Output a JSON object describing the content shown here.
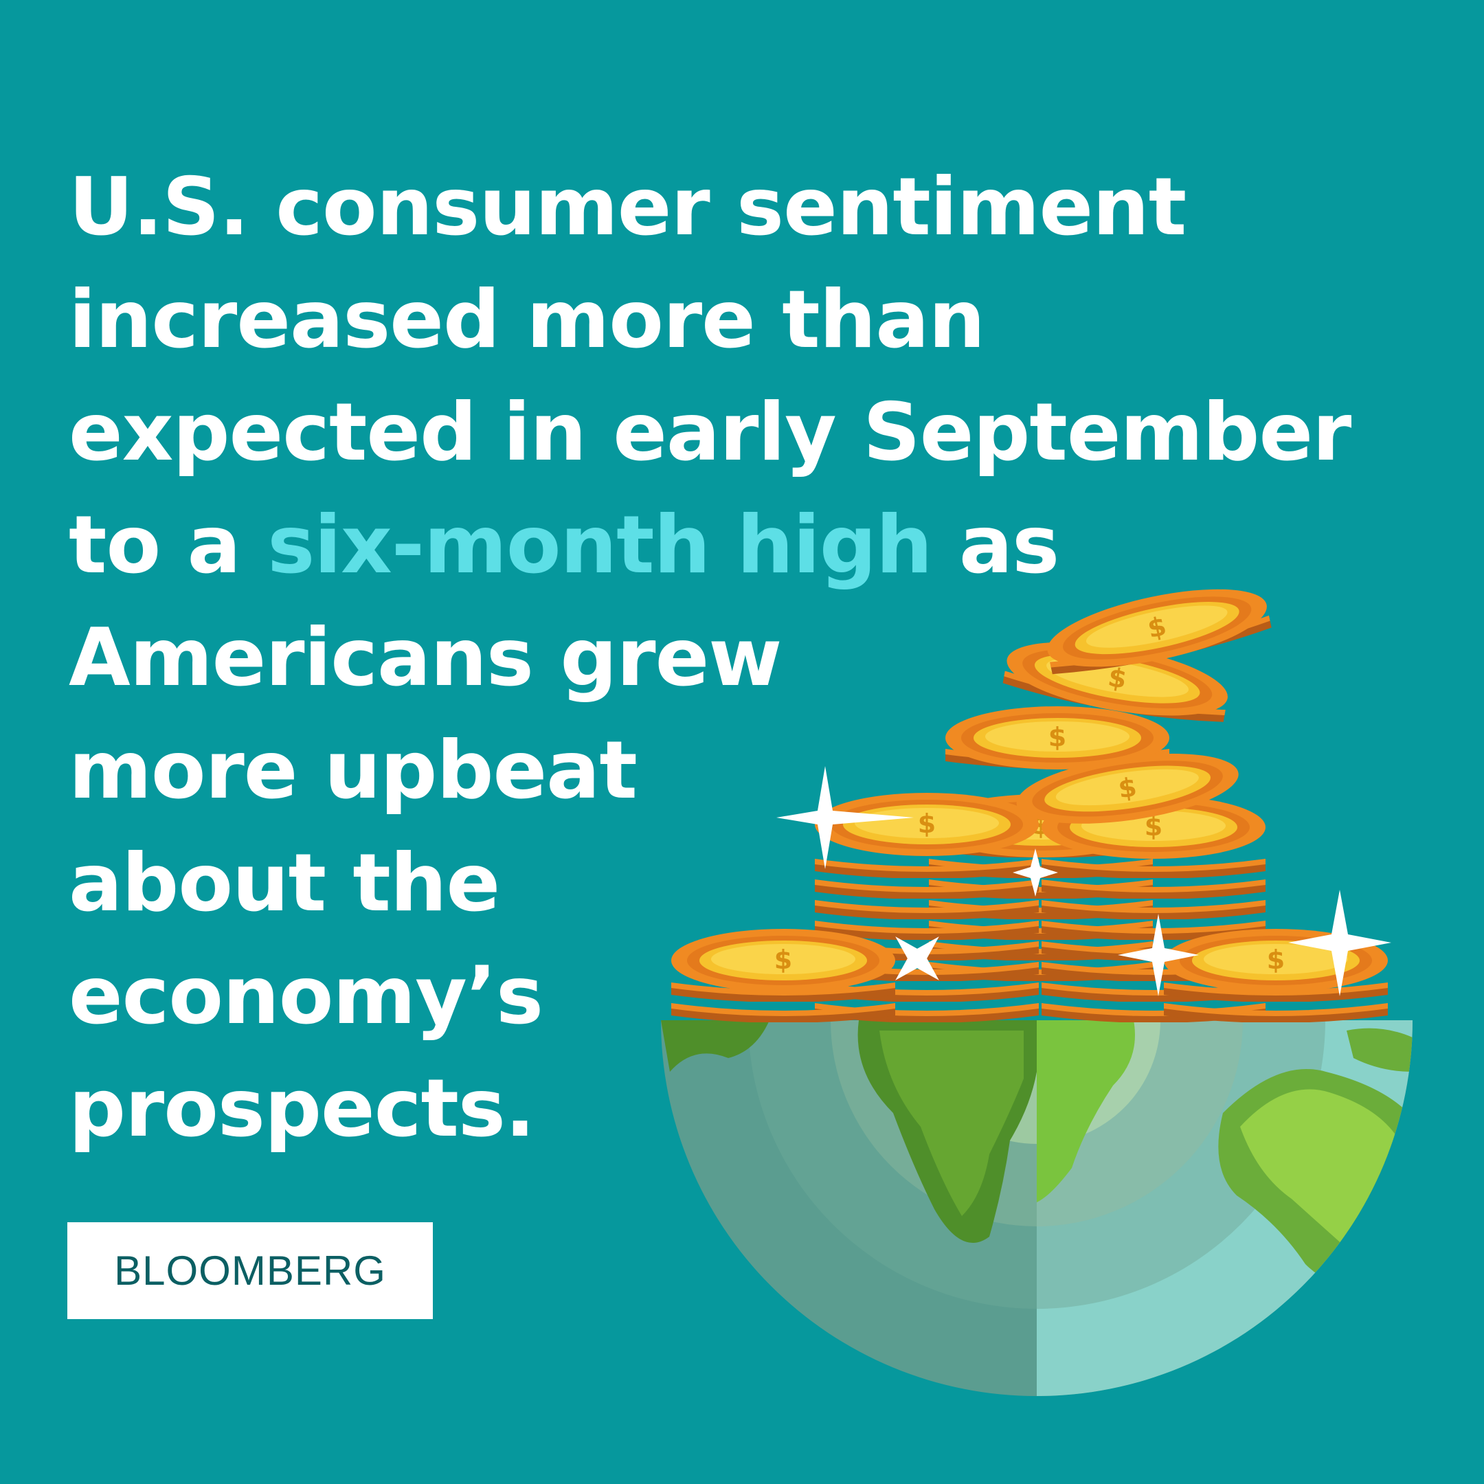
{
  "headline": {
    "line1": "U.S. consumer sentiment",
    "line2": "increased more than",
    "line3": "expected in early September",
    "line4_pre": "to a ",
    "line4_highlight": "six-month high",
    "line4_post": " as",
    "line5": "Americans grew",
    "line6": "more upbeat",
    "line7": "about the",
    "line8": "economy’s",
    "line9": "prospects."
  },
  "source": {
    "label": "BLOOMBERG"
  },
  "colors": {
    "background": "#06989d",
    "text": "#ffffff",
    "highlight": "#5ddfe6",
    "coin_gold": "#f6c22d",
    "coin_orange": "#f08a22",
    "land_green": "#6fbf2e",
    "ocean": "#7fcfc5"
  },
  "illustration": {
    "globe_icon": "globe-icon",
    "coin_icon": "dollar-coin-icon",
    "sparkle_icon": "sparkle-icon"
  }
}
